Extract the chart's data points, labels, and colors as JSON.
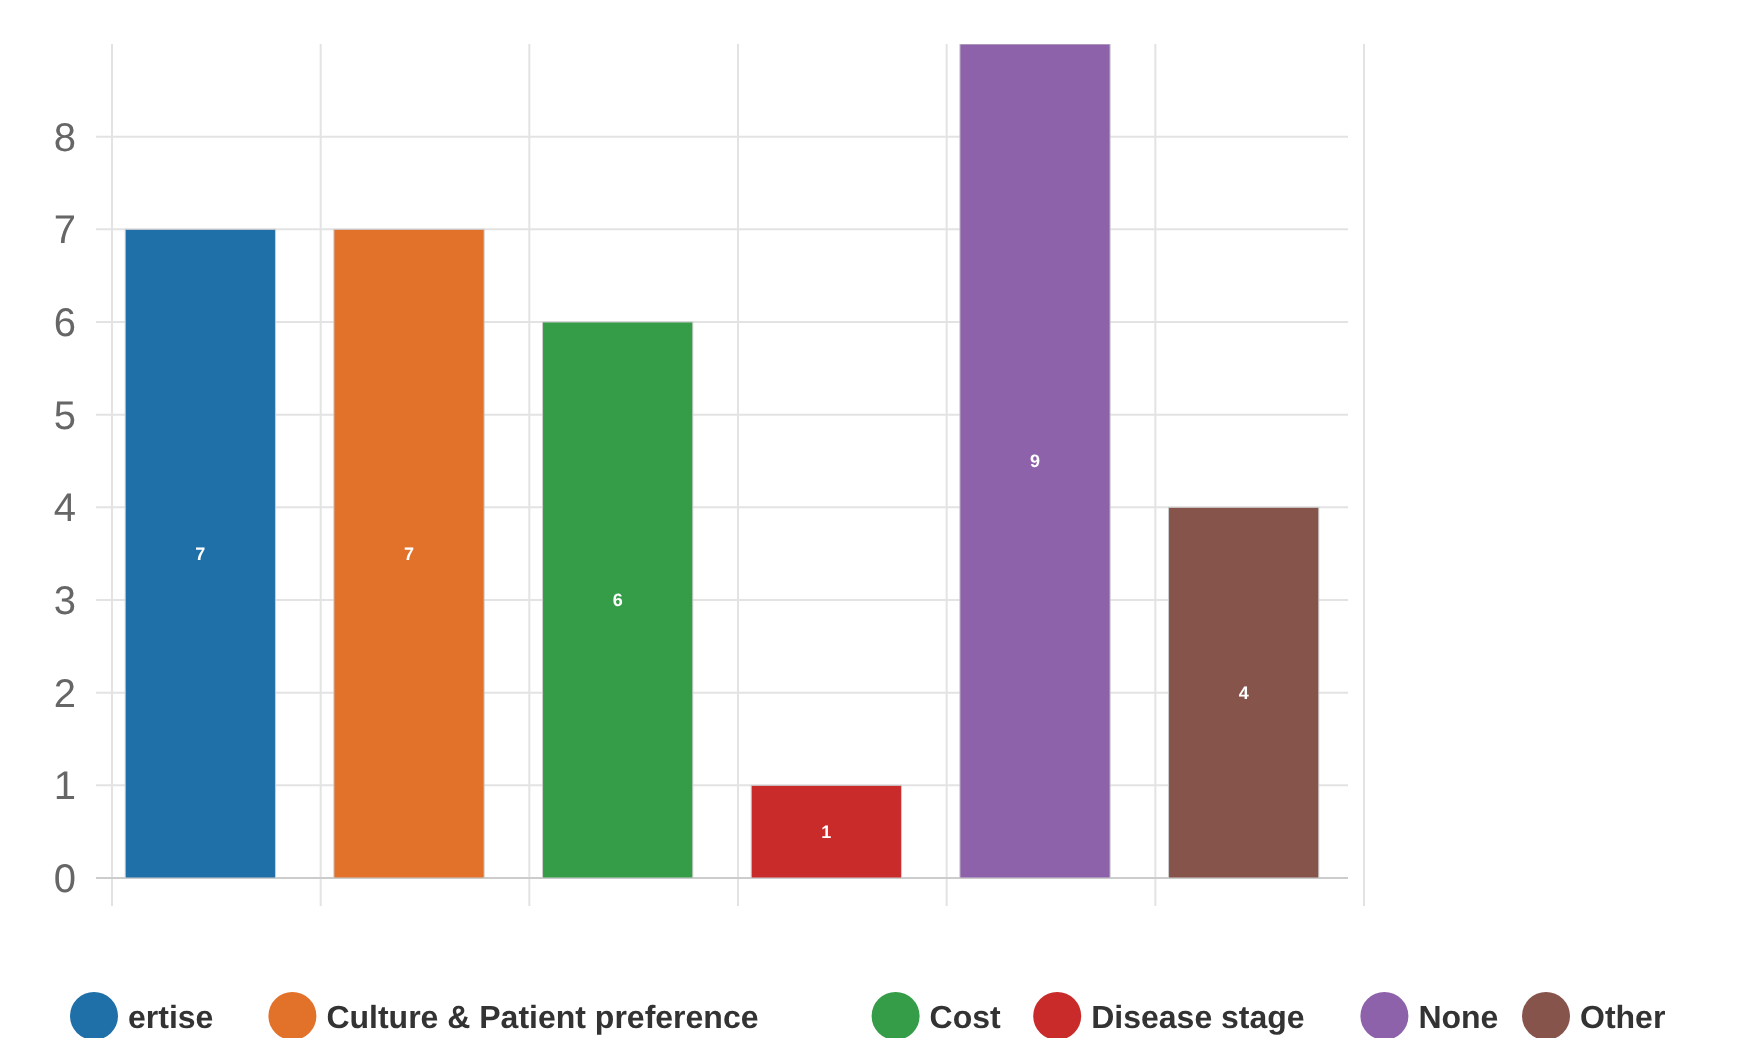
{
  "chart_data": {
    "type": "bar",
    "categories": [
      null,
      null,
      null,
      null,
      null,
      null
    ],
    "stacked": true,
    "series": [
      {
        "name": "ertise",
        "color": "#1f6fa8",
        "values": [
          7,
          null,
          null,
          null,
          null,
          null
        ]
      },
      {
        "name": "Culture & Patient preference",
        "color": "#e2712a",
        "values": [
          null,
          7,
          null,
          null,
          null,
          null
        ]
      },
      {
        "name": "Cost",
        "color": "#359c48",
        "values": [
          null,
          null,
          6,
          null,
          null,
          null
        ]
      },
      {
        "name": "Disease stage",
        "color": "#c92a2a",
        "values": [
          null,
          null,
          null,
          1,
          null,
          null
        ]
      },
      {
        "name": "None",
        "color": "#8d62ab",
        "values": [
          null,
          null,
          null,
          null,
          9,
          null
        ]
      },
      {
        "name": "Other",
        "color": "#86544a",
        "values": [
          null,
          null,
          null,
          null,
          null,
          4
        ]
      }
    ],
    "ylim": [
      0,
      9
    ],
    "yticks": [
      0,
      1,
      2,
      3,
      4,
      5,
      6,
      7,
      8
    ],
    "grid": true,
    "data_labels": true,
    "legend": "bottom"
  }
}
